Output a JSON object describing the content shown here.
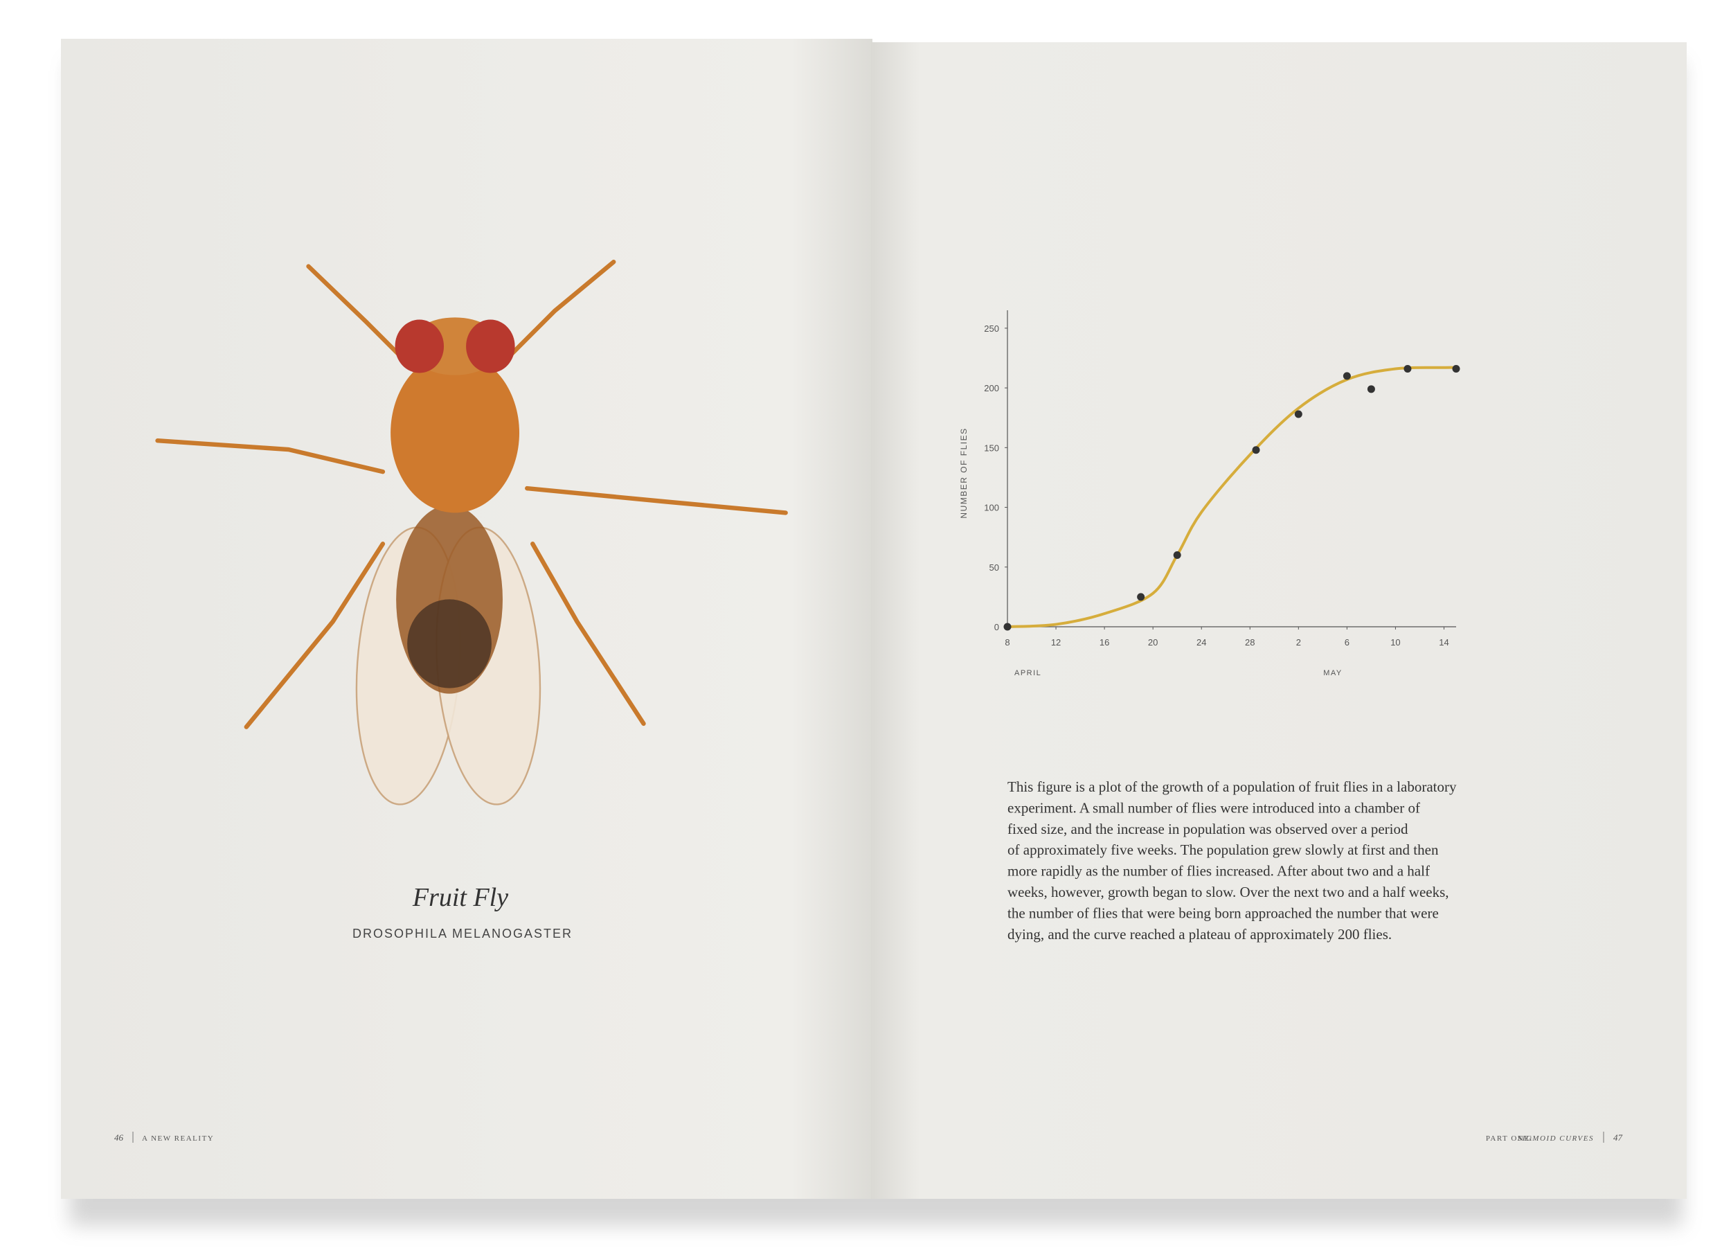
{
  "left_page": {
    "caption_title": "Fruit Fly",
    "caption_subtitle": "DROSOPHILA MELANOGASTER",
    "footer": {
      "page_number": "46",
      "section": "A NEW REALITY"
    }
  },
  "right_page": {
    "chart_data": {
      "type": "scatter",
      "y_label": "NUMBER OF FLIES",
      "month_labels": [
        "APRIL",
        "MAY"
      ],
      "x": [
        8,
        19,
        22,
        28.5,
        32,
        36,
        38,
        41,
        45
      ],
      "values": [
        0,
        25,
        60,
        148,
        178,
        210,
        199,
        216,
        216
      ],
      "color": "#333333",
      "fit": {
        "x": [
          8,
          12,
          16,
          20,
          22,
          24,
          28,
          32,
          36,
          40,
          44,
          45
        ],
        "values": [
          0,
          2,
          11,
          28,
          60,
          96,
          144,
          183,
          207,
          216,
          217,
          217
        ],
        "color": "#d6ad3c"
      },
      "xlim": [
        8,
        45
      ],
      "ylim": [
        0,
        265
      ],
      "xticks": [
        8,
        12,
        16,
        20,
        24,
        28,
        {
          "value": 32,
          "label": "2"
        },
        {
          "value": 36,
          "label": "6"
        },
        {
          "value": 40,
          "label": "10"
        },
        {
          "value": 44,
          "label": "14"
        }
      ],
      "yticks": [
        0,
        50,
        100,
        150,
        200,
        250
      ]
    },
    "paragraph_lines": [
      "This figure is a plot of the growth of a population of fruit flies in a laboratory",
      "experiment. A small number of flies were introduced into a chamber of",
      "fixed size, and the increase in population was observed over a period",
      "of approximately five weeks. The population grew slowly at first and then",
      "more rapidly as the number of flies increased. After about two and a half",
      "weeks, however, growth began to slow. Over the next two and a half weeks,",
      "the number of flies that were being born approached the number that were",
      "dying, and the curve reached a plateau of approximately 200 flies."
    ],
    "footer": {
      "part": "PART ONE:",
      "title": "SIGMOID CURVES",
      "page_number": "47"
    }
  }
}
